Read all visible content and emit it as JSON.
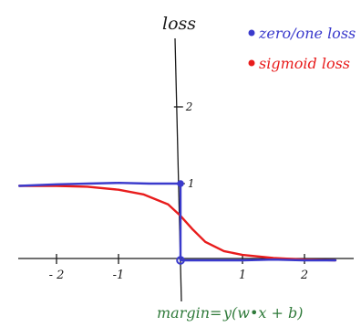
{
  "chart_data": {
    "type": "line",
    "title": "",
    "xlabel": "margin=",
    "xlabel_formula": "y(w•x + b)",
    "ylabel": "loss",
    "xlim": [
      -2.6,
      2.5
    ],
    "ylim": [
      -0.15,
      2.6
    ],
    "x_ticks": [
      -2,
      -1,
      1,
      2
    ],
    "x_tick_labels": [
      "- 2",
      "-1",
      "1",
      "2"
    ],
    "y_ticks": [
      1,
      2
    ],
    "y_tick_labels": [
      "1",
      "2"
    ],
    "grid": false,
    "legend_position": "top-right",
    "series": [
      {
        "name": "zero/one loss",
        "color": "#3a3acc",
        "points": [
          [
            -2.6,
            0.97
          ],
          [
            -2.0,
            0.99
          ],
          [
            -1.5,
            1.0
          ],
          [
            -1.0,
            1.01
          ],
          [
            -0.5,
            1.0
          ],
          [
            0.0,
            1.0
          ],
          [
            0.0,
            0.0
          ],
          [
            0.5,
            0.0
          ],
          [
            1.0,
            0.0
          ],
          [
            1.5,
            0.01
          ],
          [
            2.0,
            0.0
          ],
          [
            2.5,
            0.0
          ]
        ],
        "markers": [
          [
            0.0,
            1.0
          ],
          [
            0.0,
            0.0
          ]
        ]
      },
      {
        "name": "sigmoid loss",
        "color": "#e81c1c",
        "points": [
          [
            -2.6,
            0.97
          ],
          [
            -2.0,
            0.97
          ],
          [
            -1.5,
            0.96
          ],
          [
            -1.0,
            0.92
          ],
          [
            -0.6,
            0.86
          ],
          [
            -0.2,
            0.73
          ],
          [
            0.0,
            0.58
          ],
          [
            0.2,
            0.4
          ],
          [
            0.4,
            0.24
          ],
          [
            0.7,
            0.12
          ],
          [
            1.0,
            0.07
          ],
          [
            1.5,
            0.03
          ],
          [
            2.0,
            0.01
          ],
          [
            2.5,
            0.0
          ]
        ]
      }
    ]
  }
}
